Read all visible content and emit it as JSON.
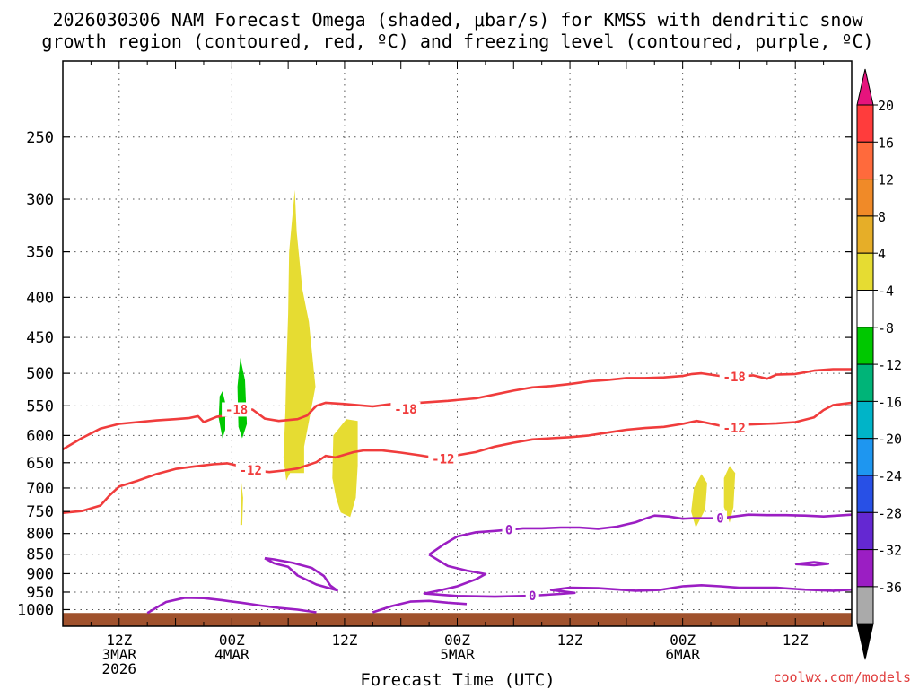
{
  "chart_data": {
    "type": "heatmap",
    "title_line1": "2026030306 NAM Forecast Omega (shaded, μbar/s) for KMSS with dendritic snow",
    "title_line2": "growth region (contoured, red, ºC) and freezing level (contoured, purple, ºC)",
    "xlabel": "Forecast Time (UTC)",
    "watermark": "coolwx.com/models",
    "ylim": [
      1050,
      200
    ],
    "xlim": [
      0,
      84
    ],
    "y_ticks": [
      250,
      300,
      350,
      400,
      450,
      500,
      550,
      600,
      650,
      700,
      750,
      800,
      850,
      900,
      950,
      1000
    ],
    "y_tick_labels": [
      "250",
      "300",
      "350",
      "400",
      "450",
      "500",
      "550",
      "600",
      "650",
      "700",
      "750",
      "800",
      "850",
      "900",
      "950",
      "1000"
    ],
    "x_ticks": [
      {
        "hour": 6,
        "lines": [
          "12Z",
          "3MAR",
          "2026"
        ]
      },
      {
        "hour": 18,
        "lines": [
          "00Z",
          "4MAR"
        ]
      },
      {
        "hour": 30,
        "lines": [
          "12Z"
        ]
      },
      {
        "hour": 42,
        "lines": [
          "00Z",
          "5MAR"
        ]
      },
      {
        "hour": 54,
        "lines": [
          "12Z"
        ]
      },
      {
        "hour": 66,
        "lines": [
          "00Z",
          "6MAR"
        ]
      },
      {
        "hour": 78,
        "lines": [
          "12Z"
        ]
      }
    ],
    "colorbar": {
      "labels": [
        "20",
        "16",
        "12",
        "8",
        "4",
        "-4",
        "-8",
        "-12",
        "-16",
        "-20",
        "-24",
        "-28",
        "-32",
        "-36"
      ],
      "colors": [
        "#ff3c3c",
        "#ff6a3c",
        "#f08a28",
        "#e6ae28",
        "#e6dc32",
        "#ffffff",
        "#00c800",
        "#00b478",
        "#00b4c8",
        "#1e96f0",
        "#2850e6",
        "#6428d2",
        "#9b1ec3",
        "#aaaaaa"
      ],
      "top_arrow_color": "#e6147d",
      "bottom_arrow_color": "#000000"
    },
    "omega_shaded": [
      {
        "color": "#e6dc32",
        "points": [
          [
            24.7,
            292
          ],
          [
            24.9,
            330
          ],
          [
            25.5,
            390
          ],
          [
            26.2,
            430
          ],
          [
            26.9,
            520
          ],
          [
            25.7,
            620
          ],
          [
            25.7,
            670
          ],
          [
            24.2,
            670
          ],
          [
            23.8,
            685
          ],
          [
            23.5,
            640
          ],
          [
            23.7,
            560
          ],
          [
            23.8,
            500
          ],
          [
            24.0,
            420
          ],
          [
            24.1,
            350
          ]
        ]
      },
      {
        "color": "#e6dc32",
        "points": [
          [
            30.2,
            572
          ],
          [
            31.4,
            575
          ],
          [
            31.4,
            655
          ],
          [
            31.2,
            720
          ],
          [
            30.6,
            762
          ],
          [
            29.6,
            752
          ],
          [
            29.1,
            720
          ],
          [
            28.7,
            680
          ],
          [
            28.8,
            600
          ]
        ]
      },
      {
        "color": "#e6dc32",
        "points": [
          [
            19.0,
            686
          ],
          [
            19.2,
            720
          ],
          [
            19.1,
            780
          ],
          [
            18.9,
            780
          ]
        ]
      },
      {
        "color": "#e6dc32",
        "points": [
          [
            68.0,
            672
          ],
          [
            68.6,
            690
          ],
          [
            68.4,
            745
          ],
          [
            67.4,
            786
          ],
          [
            66.9,
            750
          ],
          [
            67.2,
            700
          ]
        ]
      },
      {
        "color": "#e6dc32",
        "points": [
          [
            71.0,
            656
          ],
          [
            71.6,
            670
          ],
          [
            71.4,
            740
          ],
          [
            71.0,
            775
          ],
          [
            70.4,
            740
          ],
          [
            70.4,
            680
          ]
        ]
      },
      {
        "color": "#00c800",
        "points": [
          [
            18.9,
            478
          ],
          [
            19.4,
            510
          ],
          [
            19.6,
            580
          ],
          [
            19.1,
            605
          ],
          [
            18.7,
            585
          ],
          [
            18.6,
            520
          ]
        ]
      },
      {
        "color": "#00c800",
        "points": [
          [
            17.0,
            527
          ],
          [
            17.3,
            545
          ],
          [
            17.3,
            590
          ],
          [
            17.0,
            605
          ],
          [
            16.6,
            570
          ],
          [
            16.7,
            535
          ]
        ]
      }
    ],
    "dgz_contours": [
      {
        "label": "-18",
        "color": "#f03c3c",
        "label_at": [
          [
            18.5,
            556
          ],
          [
            36.5,
            555
          ],
          [
            71.5,
            505
          ]
        ],
        "points": [
          [
            0,
            625
          ],
          [
            2,
            605
          ],
          [
            4,
            588
          ],
          [
            6,
            580
          ],
          [
            8,
            577
          ],
          [
            10,
            574
          ],
          [
            12,
            572
          ],
          [
            13.5,
            570
          ],
          [
            14.4,
            567
          ],
          [
            15.0,
            577
          ],
          [
            16.4,
            568
          ],
          [
            17.5,
            566
          ],
          [
            18.5,
            556
          ],
          [
            20.2,
            556
          ],
          [
            21.5,
            571
          ],
          [
            23.0,
            575
          ],
          [
            25.0,
            572
          ],
          [
            26.0,
            566
          ],
          [
            27.0,
            550
          ],
          [
            28.0,
            545
          ],
          [
            30.0,
            547
          ],
          [
            33.0,
            551
          ],
          [
            35.0,
            547
          ],
          [
            36.5,
            555
          ],
          [
            38.0,
            545
          ],
          [
            41.0,
            542
          ],
          [
            44.0,
            538
          ],
          [
            46.0,
            532
          ],
          [
            48.0,
            526
          ],
          [
            50.0,
            521
          ],
          [
            52.0,
            519
          ],
          [
            54.0,
            516
          ],
          [
            56.0,
            512
          ],
          [
            58.0,
            510
          ],
          [
            60.0,
            507
          ],
          [
            62.0,
            507
          ],
          [
            64.0,
            506
          ],
          [
            66.0,
            504
          ],
          [
            67.0,
            501
          ],
          [
            68.0,
            500
          ],
          [
            69.0,
            502
          ],
          [
            70.0,
            504
          ],
          [
            71.5,
            505
          ],
          [
            73.5,
            503
          ],
          [
            75.0,
            508
          ],
          [
            76.0,
            502
          ],
          [
            78.0,
            501
          ],
          [
            80.0,
            496
          ],
          [
            82.0,
            494
          ],
          [
            84.0,
            494
          ]
        ]
      },
      {
        "label": "-12",
        "color": "#f03c3c",
        "label_at": [
          [
            20.0,
            664
          ],
          [
            40.5,
            643
          ],
          [
            71.5,
            587
          ]
        ],
        "points": [
          [
            0,
            753
          ],
          [
            2,
            749
          ],
          [
            4,
            737
          ],
          [
            5.0,
            715
          ],
          [
            6.0,
            697
          ],
          [
            8.0,
            685
          ],
          [
            10.0,
            672
          ],
          [
            12.0,
            662
          ],
          [
            14.0,
            657
          ],
          [
            16.0,
            653
          ],
          [
            17.5,
            651
          ],
          [
            18.5,
            655
          ],
          [
            20.0,
            664
          ],
          [
            22.0,
            668
          ],
          [
            23.5,
            665
          ],
          [
            25.0,
            661
          ],
          [
            27.0,
            649
          ],
          [
            28.0,
            637
          ],
          [
            29.0,
            640
          ],
          [
            30.0,
            635
          ],
          [
            31.0,
            630
          ],
          [
            32.0,
            627
          ],
          [
            34.0,
            627
          ],
          [
            36.0,
            631
          ],
          [
            38.0,
            636
          ],
          [
            40.5,
            643
          ],
          [
            42.0,
            636
          ],
          [
            44.0,
            630
          ],
          [
            46.0,
            620
          ],
          [
            48.0,
            613
          ],
          [
            50.0,
            607
          ],
          [
            52.0,
            605
          ],
          [
            54.0,
            603
          ],
          [
            56.0,
            600
          ],
          [
            58.0,
            595
          ],
          [
            60.0,
            590
          ],
          [
            62.0,
            587
          ],
          [
            64.0,
            585
          ],
          [
            66.0,
            580
          ],
          [
            67.5,
            575
          ],
          [
            68.5,
            578
          ],
          [
            70.0,
            583
          ],
          [
            71.5,
            587
          ],
          [
            73.0,
            581
          ],
          [
            76.0,
            579
          ],
          [
            78.0,
            577
          ],
          [
            80.0,
            569
          ],
          [
            81.0,
            557
          ],
          [
            82.0,
            549
          ],
          [
            84.0,
            545
          ]
        ]
      }
    ],
    "freezing_contours": [
      {
        "label": "0",
        "color": "#9b1ec3",
        "label_at": [
          [
            47.5,
            791
          ],
          [
            70.0,
            765
          ]
        ],
        "points": [
          [
            39.0,
            851
          ],
          [
            40.5,
            827
          ],
          [
            42.0,
            807
          ],
          [
            44.0,
            797
          ],
          [
            46.0,
            794
          ],
          [
            47.5,
            791
          ],
          [
            49.0,
            788
          ],
          [
            51.0,
            788
          ],
          [
            53.0,
            786
          ],
          [
            55.0,
            786
          ],
          [
            57.0,
            789
          ],
          [
            59.0,
            784
          ],
          [
            61.0,
            774
          ],
          [
            62.0,
            766
          ],
          [
            63.0,
            759
          ],
          [
            64.5,
            761
          ],
          [
            66.0,
            766
          ],
          [
            67.0,
            765
          ],
          [
            68.5,
            765
          ],
          [
            70.0,
            765
          ],
          [
            71.5,
            761
          ],
          [
            73.0,
            757
          ],
          [
            75.0,
            758
          ],
          [
            77.0,
            758
          ],
          [
            79.0,
            759
          ],
          [
            81.0,
            761
          ],
          [
            84.0,
            757
          ]
        ]
      },
      {
        "label": "0",
        "color": "#9b1ec3",
        "label_at": [
          [
            50.0,
            960
          ]
        ],
        "points": [
          [
            39.0,
            851
          ],
          [
            41.0,
            880
          ],
          [
            43.0,
            892
          ],
          [
            45.0,
            901
          ],
          [
            44.0,
            915
          ],
          [
            42.0,
            934
          ],
          [
            40.0,
            946
          ],
          [
            38.5,
            954
          ],
          [
            42.0,
            961
          ],
          [
            46.0,
            963
          ],
          [
            50.0,
            960
          ],
          [
            53.0,
            955
          ],
          [
            54.5,
            952
          ],
          [
            52.0,
            944
          ],
          [
            54.0,
            938
          ],
          [
            57.0,
            939
          ],
          [
            61.0,
            946
          ],
          [
            63.5,
            944
          ],
          [
            66.0,
            934
          ],
          [
            68.0,
            931
          ],
          [
            70.0,
            934
          ],
          [
            72.0,
            938
          ],
          [
            76.0,
            938
          ],
          [
            79.0,
            943
          ],
          [
            82.0,
            946
          ],
          [
            84.0,
            943
          ]
        ]
      },
      {
        "label": "",
        "color": "#9b1ec3",
        "label_at": [],
        "points": [
          [
            21.5,
            860
          ],
          [
            22.5,
            873
          ],
          [
            24.0,
            882
          ],
          [
            25.0,
            905
          ],
          [
            27.0,
            929
          ],
          [
            29.2,
            945
          ],
          [
            28.5,
            932
          ],
          [
            27.8,
            906
          ],
          [
            26.5,
            885
          ],
          [
            24.5,
            872
          ],
          [
            22.5,
            863
          ],
          [
            21.5,
            860
          ]
        ]
      },
      {
        "label": "",
        "color": "#9b1ec3",
        "label_at": [],
        "points": [
          [
            9.0,
            1010
          ],
          [
            11.0,
            978
          ],
          [
            13.0,
            966
          ],
          [
            15.0,
            967
          ],
          [
            17.0,
            973
          ],
          [
            19.0,
            980
          ],
          [
            21.0,
            988
          ],
          [
            23.0,
            995
          ],
          [
            25.0,
            1000
          ],
          [
            27.0,
            1008
          ]
        ]
      },
      {
        "label": "",
        "color": "#9b1ec3",
        "label_at": [],
        "points": [
          [
            33.0,
            1008
          ],
          [
            35.0,
            990
          ],
          [
            37.0,
            977
          ],
          [
            39.0,
            975
          ],
          [
            41.0,
            980
          ],
          [
            43.0,
            984
          ]
        ]
      },
      {
        "label": "",
        "color": "#9b1ec3",
        "label_at": [],
        "points": [
          [
            78.0,
            875
          ],
          [
            80.0,
            878
          ],
          [
            81.5,
            874
          ],
          [
            80.0,
            870
          ],
          [
            78.0,
            875
          ]
        ]
      }
    ],
    "terrain": {
      "color": "#a0522d",
      "top_hPa": 1010
    }
  }
}
